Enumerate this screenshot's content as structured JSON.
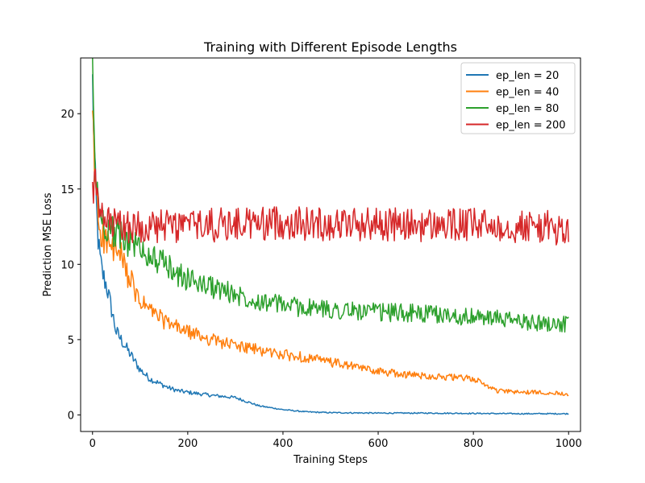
{
  "chart_data": {
    "type": "line",
    "title": "Training with Different Episode Lengths",
    "xlabel": "Training Steps",
    "ylabel": "Prediction MSE Loss",
    "xlim": [
      -25,
      1025
    ],
    "ylim": [
      -1.1,
      23.7
    ],
    "xticks": [
      0,
      200,
      400,
      600,
      800,
      1000
    ],
    "yticks": [
      0,
      5,
      10,
      15,
      20
    ],
    "grid": false,
    "legend_position": "top-right",
    "series": [
      {
        "name": "ep_len = 20",
        "color": "#1f77b4",
        "x": [
          0,
          5,
          10,
          15,
          20,
          30,
          40,
          50,
          60,
          70,
          80,
          90,
          100,
          120,
          140,
          160,
          180,
          200,
          250,
          300,
          350,
          400,
          450,
          500,
          600,
          700,
          800,
          900,
          1000
        ],
        "y": [
          22.0,
          16.0,
          12.5,
          10.5,
          9.5,
          8.5,
          7.0,
          5.5,
          5.0,
          4.5,
          4.0,
          3.5,
          3.0,
          2.4,
          2.1,
          1.8,
          1.6,
          1.5,
          1.3,
          1.15,
          0.6,
          0.35,
          0.2,
          0.15,
          0.12,
          0.12,
          0.1,
          0.08,
          0.08
        ]
      },
      {
        "name": "ep_len = 40",
        "color": "#ff7f0e",
        "x": [
          0,
          5,
          10,
          15,
          20,
          30,
          40,
          50,
          60,
          70,
          80,
          90,
          100,
          120,
          140,
          160,
          180,
          200,
          250,
          300,
          350,
          400,
          450,
          500,
          550,
          600,
          650,
          700,
          750,
          800,
          850,
          900,
          950,
          1000
        ],
        "y": [
          19.5,
          16.0,
          14.0,
          12.5,
          12.0,
          11.5,
          11.0,
          10.8,
          10.5,
          9.5,
          9.0,
          8.0,
          7.5,
          7.0,
          6.5,
          6.0,
          5.8,
          5.5,
          5.0,
          4.6,
          4.3,
          4.0,
          3.8,
          3.5,
          3.2,
          2.9,
          2.7,
          2.6,
          2.5,
          2.4,
          1.6,
          1.5,
          1.5,
          1.4
        ]
      },
      {
        "name": "ep_len = 80",
        "color": "#2ca02c",
        "x": [
          0,
          5,
          10,
          15,
          20,
          30,
          40,
          50,
          60,
          70,
          80,
          90,
          100,
          120,
          140,
          160,
          180,
          200,
          250,
          300,
          350,
          400,
          450,
          500,
          550,
          600,
          650,
          700,
          750,
          800,
          850,
          900,
          950,
          1000
        ],
        "y": [
          22.7,
          17.0,
          14.5,
          13.5,
          13.0,
          12.5,
          12.3,
          12.0,
          11.8,
          11.6,
          11.5,
          11.3,
          11.0,
          10.6,
          10.2,
          9.8,
          9.3,
          9.0,
          8.5,
          8.0,
          7.6,
          7.3,
          7.1,
          7.0,
          6.9,
          6.8,
          6.8,
          6.7,
          6.6,
          6.5,
          6.4,
          6.2,
          6.1,
          6.0
        ]
      },
      {
        "name": "ep_len = 200",
        "color": "#d62728",
        "x": [
          0,
          5,
          10,
          15,
          20,
          30,
          40,
          50,
          60,
          70,
          80,
          90,
          100,
          150,
          200,
          250,
          300,
          350,
          400,
          450,
          500,
          550,
          600,
          650,
          700,
          750,
          800,
          850,
          900,
          950,
          1000
        ],
        "y": [
          14.7,
          15.5,
          14.0,
          13.4,
          13.0,
          12.8,
          12.7,
          12.6,
          12.5,
          12.5,
          12.5,
          12.5,
          12.5,
          12.5,
          12.6,
          12.6,
          12.7,
          12.7,
          12.8,
          12.7,
          12.7,
          12.7,
          12.7,
          12.6,
          12.6,
          12.6,
          12.6,
          12.6,
          12.5,
          12.5,
          12.1
        ]
      }
    ]
  }
}
